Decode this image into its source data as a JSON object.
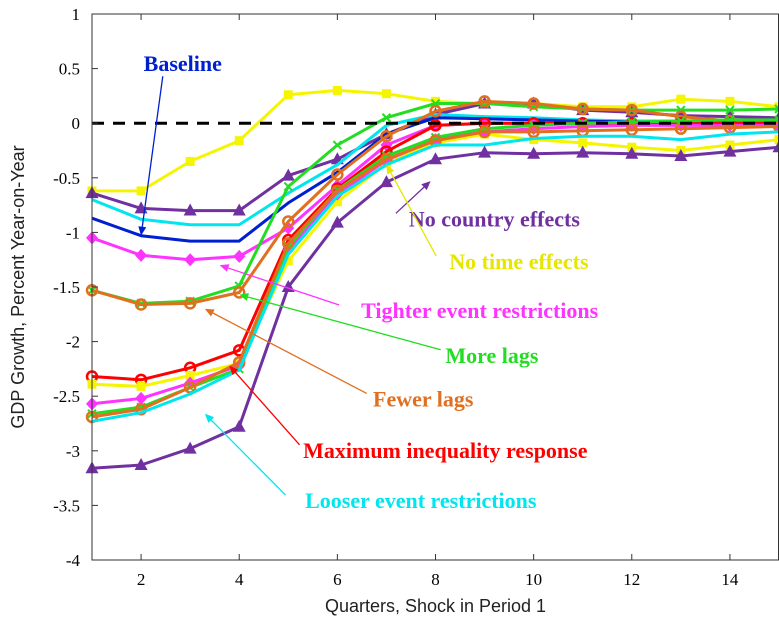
{
  "chart_data": {
    "type": "line",
    "xlabel": "Quarters, Shock in Period 1",
    "ylabel": "GDP Growth, Percent Year-on-Year",
    "xlim": [
      1,
      15
    ],
    "ylim": [
      -4,
      1
    ],
    "xticks": [
      2,
      4,
      6,
      8,
      10,
      12,
      14
    ],
    "yticks": [
      1,
      0.5,
      0,
      -0.5,
      -1,
      -1.5,
      -2,
      -2.5,
      -3,
      -3.5,
      -4
    ],
    "grid": false,
    "x": [
      1,
      2,
      3,
      4,
      5,
      6,
      7,
      8,
      9,
      10,
      11,
      12,
      13,
      14,
      15
    ],
    "zero_line": {
      "y": 0,
      "color": "#000000",
      "style": "dashed"
    },
    "series": [
      {
        "name": "No time effects",
        "color": "#f5f500",
        "marker": "square",
        "values": [
          -0.62,
          -0.62,
          -0.35,
          -0.16,
          0.26,
          0.3,
          0.27,
          0.2,
          0.18,
          0.18,
          0.15,
          0.15,
          0.22,
          0.2,
          0.15
        ]
      },
      {
        "name": "No country effects",
        "color": "#7030a0",
        "marker": "triangle",
        "values": [
          -0.64,
          -0.78,
          -0.8,
          -0.8,
          -0.48,
          -0.33,
          -0.1,
          0.08,
          0.18,
          0.18,
          0.12,
          0.1,
          0.07,
          0.06,
          0.05
        ]
      },
      {
        "name": "Looser event restrictions",
        "color": "#00e5ee",
        "marker": "none",
        "values": [
          -0.7,
          -0.88,
          -0.93,
          -0.93,
          -0.64,
          -0.38,
          -0.02,
          0.08,
          0.06,
          0.05,
          0.03,
          0.02,
          0.02,
          0.02,
          0.01
        ]
      },
      {
        "name": "Baseline",
        "color": "#0020d0",
        "marker": "none",
        "values": [
          -0.87,
          -1.03,
          -1.08,
          -1.08,
          -0.73,
          -0.45,
          -0.1,
          0.05,
          0.04,
          0.03,
          0.02,
          0.01,
          0.01,
          0.01,
          0.01
        ]
      },
      {
        "name": "Tighter event restrictions",
        "color": "#ff33ff",
        "marker": "diamond",
        "values": [
          -1.05,
          -1.21,
          -1.25,
          -1.22,
          -0.96,
          -0.57,
          -0.2,
          -0.02,
          0.0,
          0.0,
          0.0,
          0.0,
          0.0,
          0.0,
          0.0
        ]
      },
      {
        "name": "More lags",
        "color": "#22dd22",
        "marker": "x",
        "values": [
          -1.53,
          -1.65,
          -1.63,
          -1.49,
          -0.58,
          -0.2,
          0.05,
          0.18,
          0.18,
          0.15,
          0.13,
          0.12,
          0.12,
          0.12,
          0.13
        ]
      },
      {
        "name": "Fewer lags",
        "color": "#e07020",
        "marker": "circle",
        "values": [
          -1.53,
          -1.66,
          -1.65,
          -1.55,
          -0.9,
          -0.47,
          -0.12,
          0.11,
          0.2,
          0.18,
          0.13,
          0.12,
          0.06,
          0.02,
          0.0
        ]
      },
      {
        "name": "Maximum inequality response",
        "color": "#ff0000",
        "marker": "circle",
        "values": [
          -2.32,
          -2.35,
          -2.24,
          -2.08,
          -1.07,
          -0.6,
          -0.26,
          -0.02,
          0.0,
          0.0,
          0.0,
          0.0,
          0.0,
          0.0,
          0.0
        ]
      },
      {
        "name": "No time effects (low)",
        "color": "#f5f500",
        "marker": "square",
        "values": [
          -2.39,
          -2.41,
          -2.31,
          -2.2,
          -1.26,
          -0.72,
          -0.37,
          -0.18,
          -0.1,
          -0.15,
          -0.18,
          -0.22,
          -0.25,
          -0.2,
          -0.15
        ]
      },
      {
        "name": "Tighter event restrictions (low)",
        "color": "#ff33ff",
        "marker": "diamond",
        "values": [
          -2.57,
          -2.52,
          -2.38,
          -2.22,
          -1.16,
          -0.65,
          -0.34,
          -0.15,
          -0.08,
          -0.05,
          -0.03,
          -0.02,
          -0.02,
          -0.02,
          -0.02
        ]
      },
      {
        "name": "More lags (low)",
        "color": "#22dd22",
        "marker": "x",
        "values": [
          -2.66,
          -2.6,
          -2.42,
          -2.25,
          -1.13,
          -0.61,
          -0.3,
          -0.13,
          -0.05,
          -0.02,
          0.0,
          0.01,
          0.02,
          0.03,
          0.03
        ]
      },
      {
        "name": "Fewer lags (low)",
        "color": "#e07020",
        "marker": "circle",
        "values": [
          -2.69,
          -2.62,
          -2.42,
          -2.19,
          -1.1,
          -0.62,
          -0.33,
          -0.16,
          -0.08,
          -0.08,
          -0.07,
          -0.06,
          -0.05,
          -0.04,
          -0.03
        ]
      },
      {
        "name": "Looser event restrictions (low)",
        "color": "#00e5ee",
        "marker": "none",
        "values": [
          -2.73,
          -2.65,
          -2.48,
          -2.26,
          -1.2,
          -0.67,
          -0.38,
          -0.2,
          -0.2,
          -0.14,
          -0.12,
          -0.12,
          -0.15,
          -0.1,
          -0.08
        ]
      },
      {
        "name": "No country effects (low)",
        "color": "#7030a0",
        "marker": "triangle",
        "values": [
          -3.16,
          -3.13,
          -2.98,
          -2.78,
          -1.5,
          -0.91,
          -0.54,
          -0.33,
          -0.27,
          -0.28,
          -0.27,
          -0.28,
          -0.3,
          -0.26,
          -0.22
        ]
      }
    ],
    "annotations": [
      {
        "text": "Baseline",
        "color": "#0020d0",
        "at": [
          2.85,
          0.54
        ],
        "arrow_to": [
          2.0,
          -1.03
        ]
      },
      {
        "text": "No country effects",
        "color": "#7030a0",
        "at": [
          9.2,
          -0.88
        ],
        "arrow_to": [
          7.9,
          -0.53
        ]
      },
      {
        "text": "No time effects",
        "color": "#e6e600",
        "at": [
          9.7,
          -1.27
        ],
        "arrow_to": [
          7.0,
          -0.38
        ]
      },
      {
        "text": "Tighter event restrictions",
        "color": "#ff33ff",
        "at": [
          8.9,
          -1.72
        ],
        "arrow_to": [
          3.6,
          -1.3
        ]
      },
      {
        "text": "More lags",
        "color": "#22dd22",
        "at": [
          9.15,
          -2.13
        ],
        "arrow_to": [
          4.0,
          -1.57
        ]
      },
      {
        "text": "Fewer lags",
        "color": "#e07020",
        "at": [
          7.75,
          -2.53
        ],
        "arrow_to": [
          3.3,
          -1.7
        ]
      },
      {
        "text": "Maximum inequality response",
        "color": "#ff0000",
        "at": [
          8.2,
          -3.0
        ],
        "arrow_to": [
          3.8,
          -2.22
        ]
      },
      {
        "text": "Looser event restrictions",
        "color": "#00e5ee",
        "at": [
          7.7,
          -3.46
        ],
        "arrow_to": [
          3.3,
          -2.66
        ]
      }
    ]
  }
}
